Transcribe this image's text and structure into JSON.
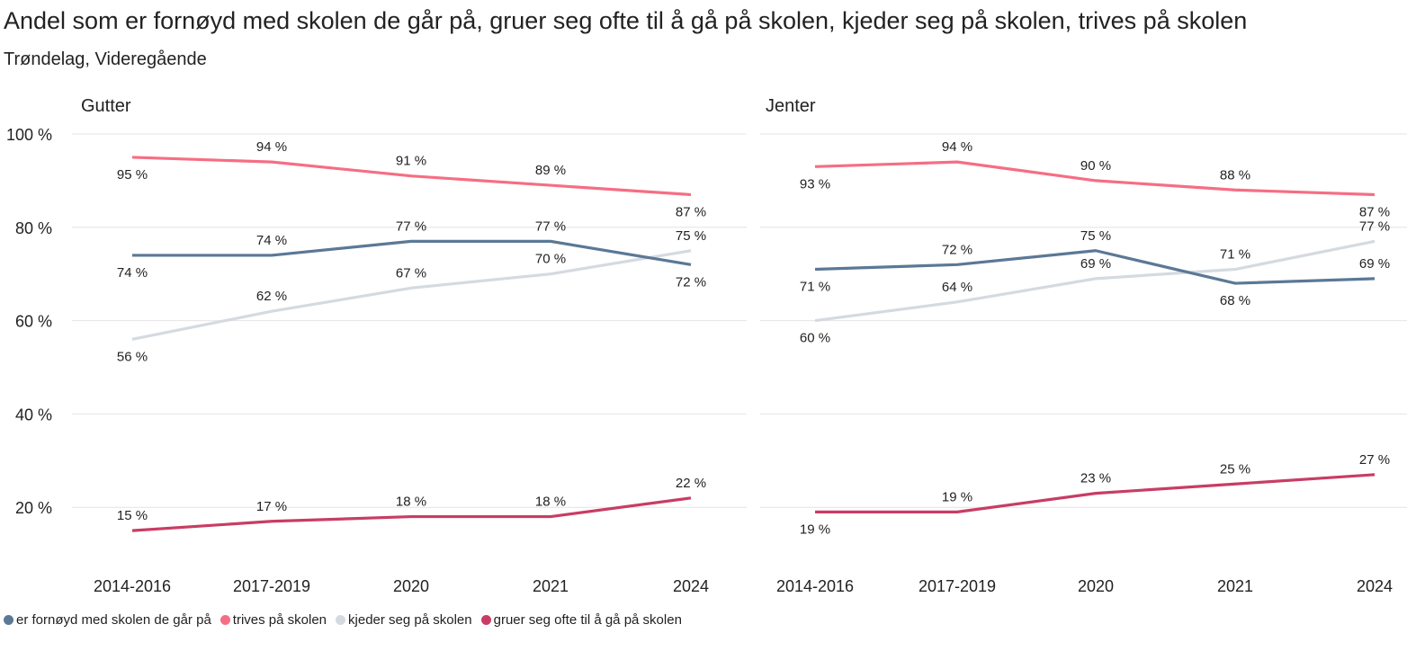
{
  "title": "Andel som er fornøyd med skolen de går på, gruer seg ofte til å gå på skolen, kjeder seg på skolen, trives på skolen",
  "subtitle": "Trøndelag, Videregående",
  "chart_data": [
    {
      "type": "line",
      "title": "Gutter",
      "categories": [
        "2014-2016",
        "2017-2019",
        "2020",
        "2021",
        "2024"
      ],
      "ylim": [
        0,
        100
      ],
      "yticks": [
        20,
        40,
        60,
        80,
        100
      ],
      "ytick_labels": [
        "20 %",
        "40 %",
        "60 %",
        "80 %",
        "100 %"
      ],
      "grid": true,
      "series": [
        {
          "name": "er fornøyd med skolen de går på",
          "color": "#5b7896",
          "values": [
            74,
            74,
            77,
            77,
            72
          ],
          "labels": [
            "74 %",
            "74 %",
            "77 %",
            "77 %",
            "72 %"
          ]
        },
        {
          "name": "trives på skolen",
          "color": "#f56e83",
          "values": [
            95,
            94,
            91,
            89,
            87
          ],
          "labels": [
            "95 %",
            "94 %",
            "91 %",
            "89 %",
            "87 %"
          ]
        },
        {
          "name": "kjeder seg på skolen",
          "color": "#d5dae1",
          "values": [
            56,
            62,
            67,
            70,
            75
          ],
          "labels": [
            "56 %",
            "62 %",
            "67 %",
            "70 %",
            "75 %"
          ]
        },
        {
          "name": "gruer seg ofte til å gå på skolen",
          "color": "#c83d65",
          "values": [
            15,
            17,
            18,
            18,
            22
          ],
          "labels": [
            "15 %",
            "17 %",
            "18 %",
            "18 %",
            "22 %"
          ]
        }
      ]
    },
    {
      "type": "line",
      "title": "Jenter",
      "categories": [
        "2014-2016",
        "2017-2019",
        "2020",
        "2021",
        "2024"
      ],
      "ylim": [
        0,
        100
      ],
      "yticks": [
        20,
        40,
        60,
        80,
        100
      ],
      "grid": true,
      "series": [
        {
          "name": "er fornøyd med skolen de går på",
          "color": "#5b7896",
          "values": [
            71,
            72,
            75,
            68,
            69
          ],
          "labels": [
            "71 %",
            "72 %",
            "75 %",
            "68 %",
            "69 %"
          ]
        },
        {
          "name": "trives på skolen",
          "color": "#f56e83",
          "values": [
            93,
            94,
            90,
            88,
            87
          ],
          "labels": [
            "93 %",
            "94 %",
            "90 %",
            "88 %",
            "87 %"
          ]
        },
        {
          "name": "kjeder seg på skolen",
          "color": "#d5dae1",
          "values": [
            60,
            64,
            69,
            71,
            77
          ],
          "labels": [
            "60 %",
            "64 %",
            "69 %",
            "71 %",
            "77 %"
          ]
        },
        {
          "name": "gruer seg ofte til å gå på skolen",
          "color": "#c83d65",
          "values": [
            19,
            19,
            23,
            25,
            27
          ],
          "labels": [
            "19 %",
            "19 %",
            "23 %",
            "25 %",
            "27 %"
          ]
        }
      ]
    }
  ],
  "legend": [
    {
      "label": "er fornøyd med skolen de går på",
      "color": "#5b7896"
    },
    {
      "label": "trives på skolen",
      "color": "#f56e83"
    },
    {
      "label": "kjeder seg på skolen",
      "color": "#d5dae1"
    },
    {
      "label": "gruer seg ofte til å gå på skolen",
      "color": "#c83d65"
    }
  ]
}
